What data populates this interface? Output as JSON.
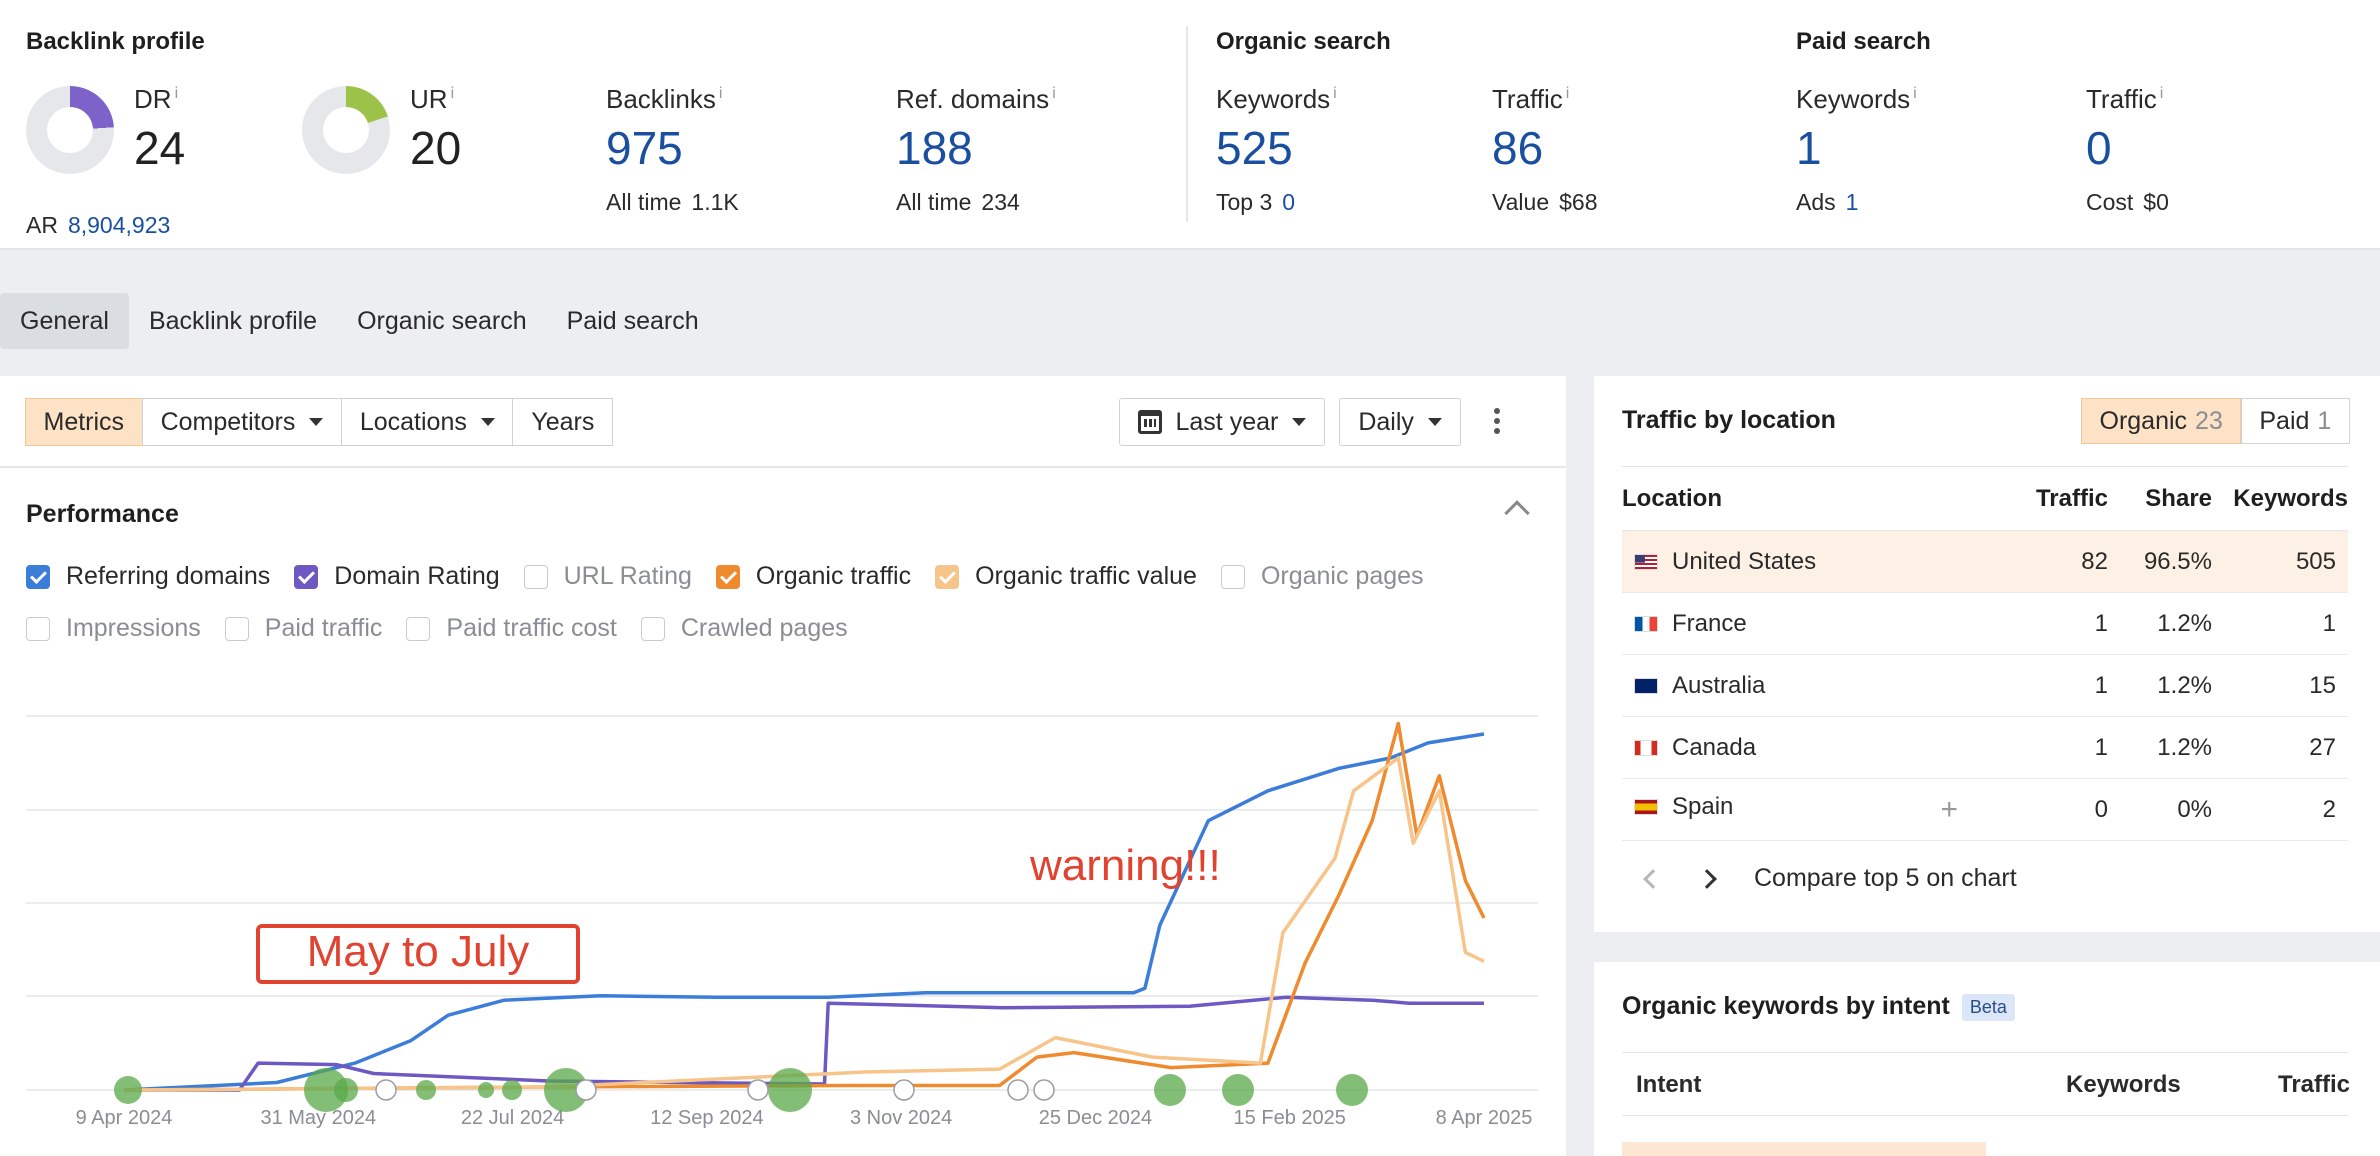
{
  "backlink_profile": {
    "title": "Backlink profile",
    "dr": {
      "label": "DR",
      "value": "24",
      "fill_fraction": 0.24,
      "color": "#7c62c9"
    },
    "ur": {
      "label": "UR",
      "value": "20",
      "fill_fraction": 0.2,
      "color": "#9cc24a"
    },
    "ar": {
      "label": "AR",
      "value": "8,904,923"
    },
    "backlinks": {
      "label": "Backlinks",
      "value": "975",
      "sub_label": "All time",
      "sub_value": "1.1K"
    },
    "ref_domains": {
      "label": "Ref. domains",
      "value": "188",
      "sub_label": "All time",
      "sub_value": "234"
    }
  },
  "organic_search": {
    "title": "Organic search",
    "keywords": {
      "label": "Keywords",
      "value": "525",
      "sub_label": "Top 3",
      "sub_value": "0"
    },
    "traffic": {
      "label": "Traffic",
      "value": "86",
      "sub_label": "Value",
      "sub_value": "$68"
    }
  },
  "paid_search": {
    "title": "Paid search",
    "keywords": {
      "label": "Keywords",
      "value": "1",
      "sub_label": "Ads",
      "sub_value": "1"
    },
    "traffic": {
      "label": "Traffic",
      "value": "0",
      "sub_label": "Cost",
      "sub_value": "$0"
    }
  },
  "info_glyph": "i",
  "tabs": [
    "General",
    "Backlink profile",
    "Organic search",
    "Paid search"
  ],
  "toolbar": {
    "metrics": "Metrics",
    "competitors": "Competitors",
    "locations": "Locations",
    "years": "Years",
    "date_range": "Last year",
    "interval": "Daily"
  },
  "performance": {
    "title": "Performance",
    "checkboxes": [
      {
        "label": "Referring domains",
        "checked": true,
        "color": "#3b7dd8"
      },
      {
        "label": "Domain Rating",
        "checked": true,
        "color": "#6e58c2"
      },
      {
        "label": "URL Rating",
        "checked": false,
        "color": ""
      },
      {
        "label": "Organic traffic",
        "checked": true,
        "color": "#ef8a2e"
      },
      {
        "label": "Organic traffic value",
        "checked": true,
        "color": "#f7c48a"
      },
      {
        "label": "Organic pages",
        "checked": false,
        "color": ""
      },
      {
        "label": "Impressions",
        "checked": false,
        "color": ""
      },
      {
        "label": "Paid traffic",
        "checked": false,
        "color": ""
      },
      {
        "label": "Paid traffic cost",
        "checked": false,
        "color": ""
      },
      {
        "label": "Crawled pages",
        "checked": false,
        "color": ""
      }
    ]
  },
  "chart_data": {
    "type": "line",
    "x_ticks": [
      "9 Apr 2024",
      "31 May 2024",
      "22 Jul 2024",
      "12 Sep 2024",
      "3 Nov 2024",
      "25 Dec 2024",
      "15 Feb 2025",
      "8 Apr 2025"
    ],
    "grid": true,
    "series": [
      {
        "name": "Referring domains",
        "color": "#3b7dd8",
        "x": [
          "2024-04-09",
          "2024-05-20",
          "2024-06-10",
          "2024-06-25",
          "2024-07-05",
          "2024-07-20",
          "2024-08-15",
          "2024-09-15",
          "2024-10-15",
          "2024-11-10",
          "2024-12-15",
          "2025-01-05",
          "2025-01-08",
          "2025-01-12",
          "2025-01-25",
          "2025-02-10",
          "2025-03-01",
          "2025-03-15",
          "2025-03-25",
          "2025-04-09"
        ],
        "y": [
          0,
          5,
          18,
          33,
          50,
          60,
          63,
          62,
          62,
          65,
          65,
          65,
          68,
          110,
          180,
          200,
          215,
          222,
          232,
          238
        ]
      },
      {
        "name": "Domain Rating",
        "color": "#6e58c2",
        "x": [
          "2024-04-09",
          "2024-05-10",
          "2024-05-15",
          "2024-06-05",
          "2024-06-15",
          "2024-08-01",
          "2024-10-14",
          "2024-10-15",
          "2024-12-01",
          "2025-01-20",
          "2025-02-15",
          "2025-03-10",
          "2025-03-20",
          "2025-04-09"
        ],
        "y": [
          0,
          0,
          18,
          17,
          11,
          6,
          4,
          58,
          55,
          56,
          62,
          60,
          58,
          58
        ]
      },
      {
        "name": "Organic traffic",
        "color": "#ef8a2e",
        "x": [
          "2024-04-09",
          "2024-08-01",
          "2024-10-20",
          "2024-11-30",
          "2024-12-10",
          "2024-12-20",
          "2025-01-15",
          "2025-02-10",
          "2025-02-20",
          "2025-03-01",
          "2025-03-10",
          "2025-03-17",
          "2025-03-22",
          "2025-03-28",
          "2025-04-04",
          "2025-04-09"
        ],
        "y": [
          0,
          2,
          3,
          3,
          22,
          25,
          15,
          18,
          85,
          130,
          180,
          245,
          170,
          210,
          140,
          115
        ]
      },
      {
        "name": "Organic traffic value",
        "color": "#f7c48a",
        "x": [
          "2024-04-09",
          "2024-08-01",
          "2024-10-25",
          "2024-11-30",
          "2024-12-15",
          "2025-01-10",
          "2025-02-08",
          "2025-02-14",
          "2025-02-28",
          "2025-03-05",
          "2025-03-17",
          "2025-03-21",
          "2025-03-28",
          "2025-04-04",
          "2025-04-09"
        ],
        "y": [
          0,
          2,
          12,
          14,
          35,
          22,
          18,
          105,
          155,
          200,
          222,
          165,
          200,
          92,
          86
        ]
      }
    ],
    "ylim": [
      0,
      250
    ]
  },
  "annotations": {
    "box_text": "May to July",
    "warning_text": "warning!!!",
    "color": "#e14331"
  },
  "traffic_by_location": {
    "title": "Traffic by location",
    "organic_label": "Organic",
    "organic_count": "23",
    "paid_label": "Paid",
    "paid_count": "1",
    "headers": [
      "Location",
      "Traffic",
      "Share",
      "Keywords"
    ],
    "rows": [
      {
        "country": "United States",
        "flag": "us-flag-icon",
        "traffic": "82",
        "share": "96.5%",
        "keywords": "505"
      },
      {
        "country": "France",
        "flag": "fr-flag-icon",
        "traffic": "1",
        "share": "1.2%",
        "keywords": "1"
      },
      {
        "country": "Australia",
        "flag": "au-flag-icon",
        "traffic": "1",
        "share": "1.2%",
        "keywords": "15"
      },
      {
        "country": "Canada",
        "flag": "ca-flag-icon",
        "traffic": "1",
        "share": "1.2%",
        "keywords": "27"
      },
      {
        "country": "Spain",
        "flag": "es-flag-icon",
        "traffic": "0",
        "share": "0%",
        "keywords": "2"
      }
    ],
    "plus_glyph": "+",
    "compare_label": "Compare top 5 on chart"
  },
  "organic_keywords_by_intent": {
    "title": "Organic keywords by intent",
    "badge": "Beta",
    "headers": [
      "Intent",
      "Keywords",
      "Traffic"
    ]
  }
}
